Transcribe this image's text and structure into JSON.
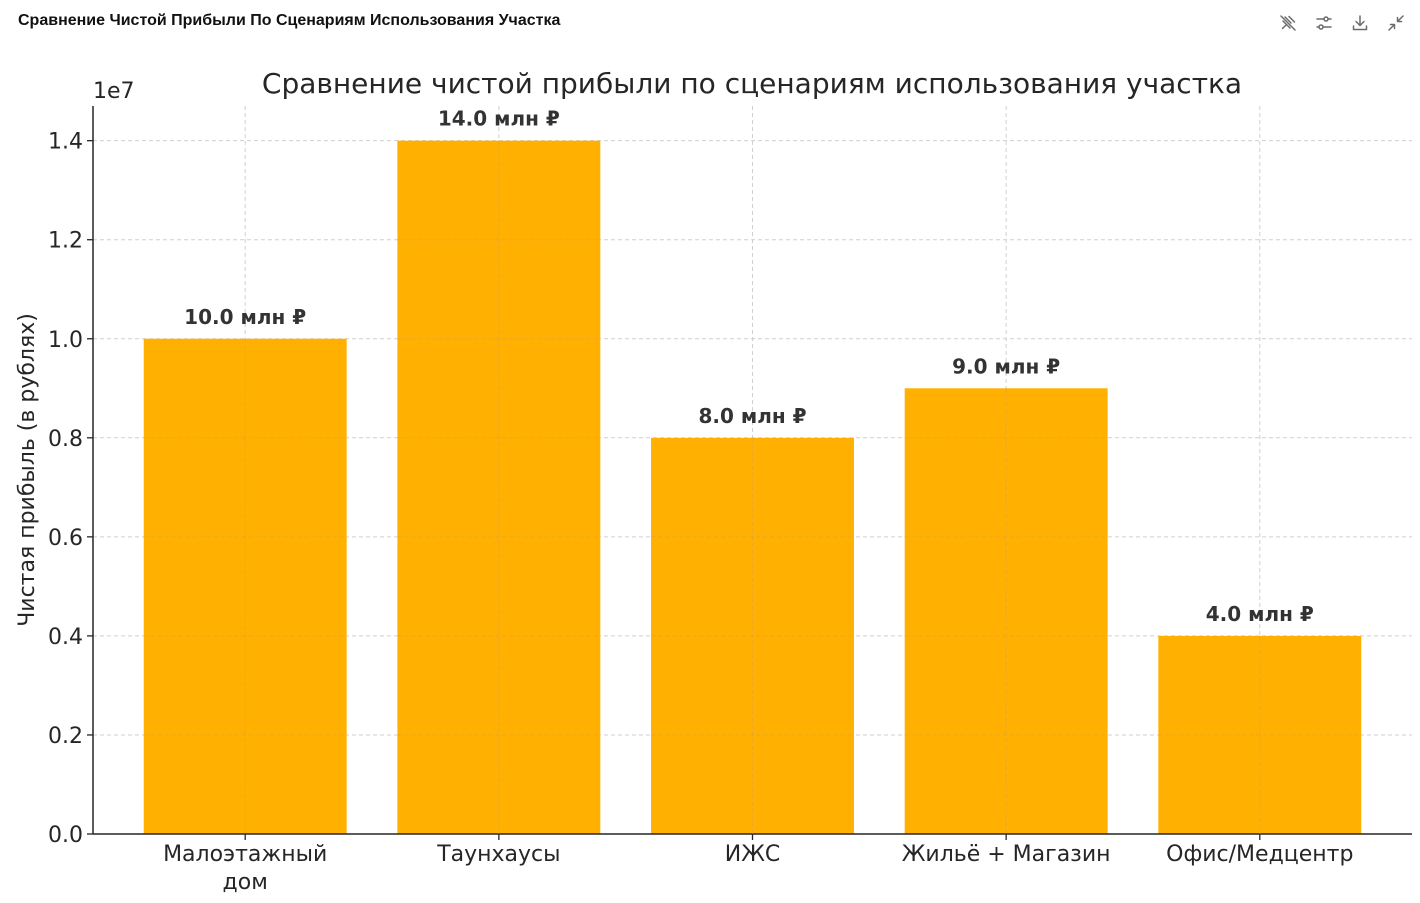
{
  "header": {
    "title": "Сравнение Чистой Прибыли По Сценариям Использования Участка"
  },
  "toolbar": {
    "icons": [
      "pin-off-icon",
      "settings-sliders-icon",
      "download-icon",
      "collapse-icon"
    ]
  },
  "colors": {
    "bar": "#FFB000",
    "axis": "#262626",
    "grid": "#cfcfcf",
    "label": "#333333"
  },
  "chart_data": {
    "type": "bar",
    "title": "Сравнение чистой прибыли по сценариям использования участка",
    "xlabel": "",
    "ylabel": "Чистая прибыль (в рублях)",
    "y_offset_text": "1e7",
    "categories": [
      [
        "Малоэтажный",
        "дом"
      ],
      [
        "Таунхаусы"
      ],
      [
        "ИЖС"
      ],
      [
        "Жильё + Магазин"
      ],
      [
        "Офис/Медцентр"
      ]
    ],
    "values": [
      10000000,
      14000000,
      8000000,
      9000000,
      4000000
    ],
    "data_labels": [
      "10.0 млн ₽",
      "14.0 млн ₽",
      "8.0 млн ₽",
      "9.0 млн ₽",
      "4.0 млн ₽"
    ],
    "ylim": [
      0,
      14700000
    ],
    "yticks": [
      0,
      2000000,
      4000000,
      6000000,
      8000000,
      10000000,
      12000000,
      14000000
    ],
    "ytick_labels": [
      "0.0",
      "0.2",
      "0.4",
      "0.6",
      "0.8",
      "1.0",
      "1.2",
      "1.4"
    ],
    "grid": true,
    "legend": "none"
  }
}
